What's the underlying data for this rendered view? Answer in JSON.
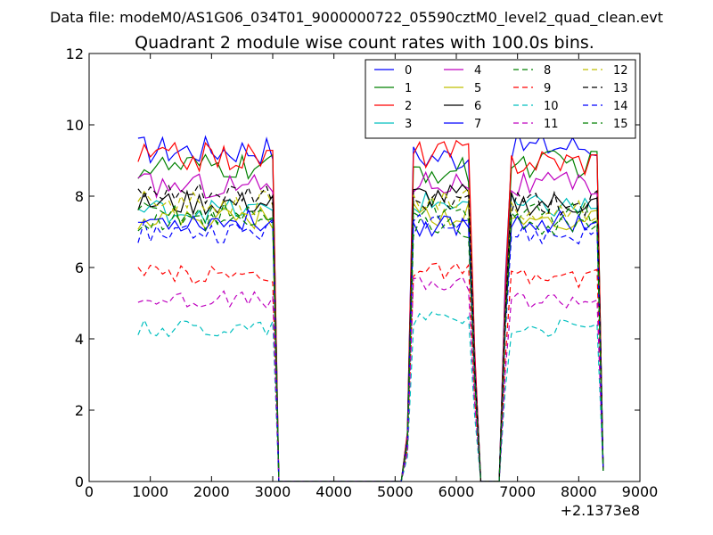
{
  "chart_data": {
    "type": "line",
    "suptitle": "Data file: modeM0/AS1G06_034T01_9000000722_05590cztM0_level2_quad_clean.evt",
    "title": "Quadrant 2 module wise count rates with 100.0s bins.",
    "xlabel": "",
    "ylabel": "",
    "x_offset_label": "+2.1373e8",
    "xlim": [
      0,
      9000
    ],
    "ylim": [
      0,
      12
    ],
    "x_ticks": [
      0,
      1000,
      2000,
      3000,
      4000,
      5000,
      6000,
      7000,
      8000,
      9000
    ],
    "y_ticks": [
      0,
      2,
      4,
      6,
      8,
      10,
      12
    ],
    "grid": false,
    "legend_position": "top-right",
    "legend_columns": 4,
    "segments": [
      {
        "x_start": 800,
        "x_end": 3000
      },
      {
        "x_start": 5300,
        "x_end": 6200
      },
      {
        "x_start": 6900,
        "x_end": 8300
      }
    ],
    "series": [
      {
        "name": "0",
        "color": "#0000ff",
        "dash": "solid",
        "levels": [
          9.3,
          9.1,
          9.4
        ]
      },
      {
        "name": "1",
        "color": "#008000",
        "dash": "solid",
        "levels": [
          8.8,
          8.7,
          8.9
        ]
      },
      {
        "name": "2",
        "color": "#ff0000",
        "dash": "solid",
        "levels": [
          9.1,
          9.2,
          9.0
        ]
      },
      {
        "name": "3",
        "color": "#00bfbf",
        "dash": "solid",
        "levels": [
          7.6,
          7.8,
          7.7
        ]
      },
      {
        "name": "4",
        "color": "#bf00bf",
        "dash": "solid",
        "levels": [
          8.3,
          8.4,
          8.3
        ]
      },
      {
        "name": "5",
        "color": "#bfbf00",
        "dash": "solid",
        "levels": [
          7.4,
          7.5,
          7.3
        ]
      },
      {
        "name": "6",
        "color": "#000000",
        "dash": "solid",
        "levels": [
          7.8,
          8.0,
          7.8
        ]
      },
      {
        "name": "7",
        "color": "#0000ff",
        "dash": "solid",
        "levels": [
          7.3,
          7.2,
          7.3
        ]
      },
      {
        "name": "8",
        "color": "#008000",
        "dash": "dashed",
        "levels": [
          7.5,
          7.6,
          7.5
        ]
      },
      {
        "name": "9",
        "color": "#ff0000",
        "dash": "dashed",
        "levels": [
          5.8,
          5.9,
          5.7
        ]
      },
      {
        "name": "10",
        "color": "#00bfbf",
        "dash": "dashed",
        "levels": [
          4.3,
          4.6,
          4.3
        ]
      },
      {
        "name": "11",
        "color": "#bf00bf",
        "dash": "dashed",
        "levels": [
          5.1,
          5.5,
          5.1
        ]
      },
      {
        "name": "12",
        "color": "#bfbf00",
        "dash": "dashed",
        "levels": [
          7.8,
          7.9,
          7.6
        ]
      },
      {
        "name": "13",
        "color": "#000000",
        "dash": "dashed",
        "levels": [
          8.0,
          7.9,
          7.8
        ]
      },
      {
        "name": "14",
        "color": "#0000ff",
        "dash": "dashed",
        "levels": [
          7.0,
          7.4,
          6.9
        ]
      },
      {
        "name": "15",
        "color": "#008000",
        "dash": "dashed",
        "levels": [
          7.2,
          7.1,
          7.2
        ]
      }
    ]
  }
}
